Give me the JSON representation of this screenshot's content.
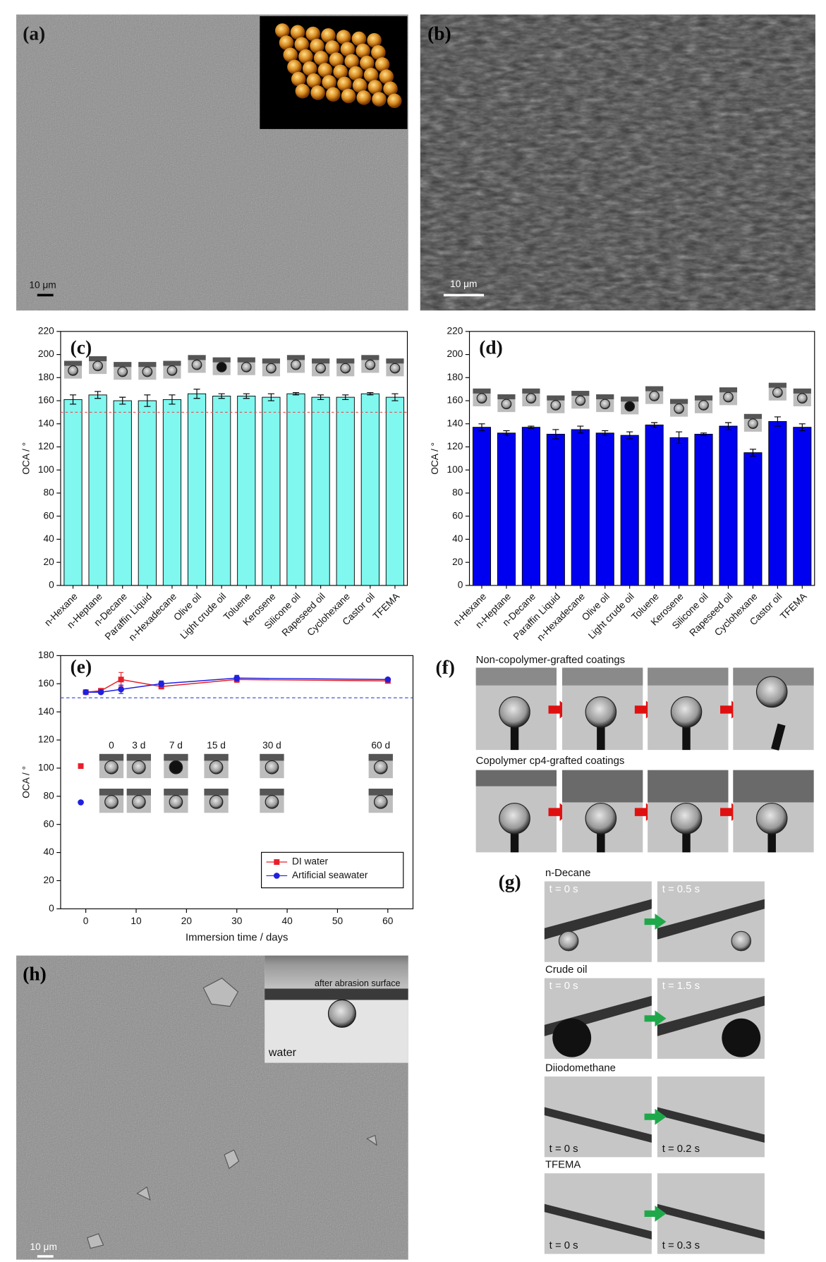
{
  "panels": {
    "a": {
      "label": "(a)",
      "scale": "10 μm"
    },
    "b": {
      "label": "(b)",
      "scale": "10 μm"
    },
    "f": {
      "label": "(f)",
      "top": "Non-copolymer-grafted coatings",
      "bottom": "Copolymer cp4-grafted coatings"
    },
    "g": {
      "label": "(g)",
      "rows": [
        {
          "title": "n-Decane",
          "times": [
            "t = 0 s",
            "t = 0.5 s"
          ]
        },
        {
          "title": "Crude oil",
          "times": [
            "t = 0 s",
            "t = 1.5 s"
          ]
        },
        {
          "title": "Diiodomethane",
          "times": [
            "t = 0 s",
            "t = 0.2 s"
          ]
        },
        {
          "title": "TFEMA",
          "times": [
            "t = 0 s",
            "t = 0.3 s"
          ]
        }
      ]
    },
    "h": {
      "label": "(h)",
      "inset": "after abrasion surface",
      "medium": "water",
      "scale": "10 μm"
    }
  },
  "chart_data": [
    {
      "type": "bar",
      "label": "(c)",
      "ylabel": "OCA / °",
      "categories": [
        "n-Hexane",
        "n-Heptane",
        "n-Decane",
        "Paraffin Liquid",
        "n-Hexadecane",
        "Olive oil",
        "Light crude oil",
        "Toluene",
        "Kerosene",
        "Silicone oil",
        "Rapeseed oil",
        "Cyclohexane",
        "Castor oil",
        "TFEMA"
      ],
      "values": [
        161,
        165,
        160,
        160,
        161,
        166,
        164,
        164,
        163,
        166,
        163,
        163,
        166,
        163
      ],
      "errors": [
        4,
        3,
        3,
        5,
        4,
        4,
        2,
        2,
        3,
        1,
        2,
        2,
        1,
        3
      ],
      "color": "#80f7ef",
      "ylim": [
        0,
        220
      ],
      "yticks": [
        0,
        20,
        40,
        60,
        80,
        100,
        120,
        140,
        160,
        180,
        200,
        220
      ],
      "reference_line": 150,
      "reference_color": "#e05050"
    },
    {
      "type": "bar",
      "label": "(d)",
      "ylabel": "OCA / °",
      "categories": [
        "n-Hexane",
        "n-Heptane",
        "n-Decane",
        "Paraffin Liquid",
        "n-Hexadecane",
        "Olive oil",
        "Light crude oil",
        "Toluene",
        "Kerosene",
        "Silicone oil",
        "Rapeseed oil",
        "Cyclohexane",
        "Castor oil",
        "TFEMA"
      ],
      "values": [
        137,
        132,
        137,
        131,
        135,
        132,
        130,
        139,
        128,
        131,
        138,
        115,
        142,
        137
      ],
      "errors": [
        3,
        2,
        1,
        4,
        3,
        2,
        3,
        2,
        5,
        1,
        3,
        3,
        4,
        3
      ],
      "color": "#0000f0",
      "ylim": [
        0,
        220
      ],
      "yticks": [
        0,
        20,
        40,
        60,
        80,
        100,
        120,
        140,
        160,
        180,
        200,
        220
      ]
    },
    {
      "type": "line",
      "label": "(e)",
      "xlabel": "Immersion time / days",
      "ylabel": "OCA / °",
      "x": [
        0,
        3,
        7,
        15,
        30,
        60
      ],
      "series": [
        {
          "name": "DI water",
          "color": "#e8202a",
          "marker": "square",
          "values": [
            154,
            155,
            163,
            158,
            163,
            162
          ],
          "errors": [
            1,
            1,
            5,
            1,
            2,
            1
          ]
        },
        {
          "name": "Artificial seawater",
          "color": "#2020e0",
          "marker": "circle",
          "values": [
            154,
            154,
            156,
            160,
            164,
            163
          ],
          "errors": [
            1,
            1,
            3,
            2,
            2,
            1
          ]
        }
      ],
      "xlim": [
        -5,
        65
      ],
      "xticks": [
        0,
        10,
        20,
        30,
        40,
        50,
        60
      ],
      "ylim": [
        0,
        180
      ],
      "yticks": [
        0,
        20,
        40,
        60,
        80,
        100,
        120,
        140,
        160,
        180
      ],
      "reference_line": 150,
      "reference_color": "#3040e0",
      "legend": "lower right",
      "inset_labels": [
        "0",
        "3 d",
        "7 d",
        "15 d",
        "30 d",
        "60 d"
      ]
    }
  ]
}
